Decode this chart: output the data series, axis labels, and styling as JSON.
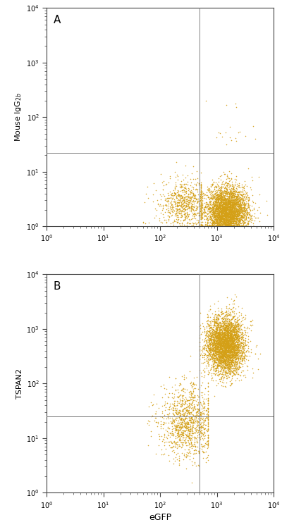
{
  "dot_color": "#D4A017",
  "dot_size": 1.2,
  "dot_alpha": 0.9,
  "background_color": "#ffffff",
  "border_color": "#444444",
  "line_color": "#808080",
  "xlim": [
    1,
    10000
  ],
  "ylim": [
    1,
    10000
  ],
  "xlabel": "eGFP",
  "ylabel_A": "Mouse IgG$_{2b}$",
  "ylabel_B": "TSPAN2",
  "label_A": "A",
  "label_B": "B",
  "hline_A": 22,
  "vline_A": 500,
  "hline_B": 25,
  "vline_B": 500,
  "panel_A": {
    "main_n": 4000,
    "scatter_n": 800,
    "stray_n": 15
  },
  "panel_B": {
    "main_n": 4000,
    "scatter_n": 1200
  }
}
